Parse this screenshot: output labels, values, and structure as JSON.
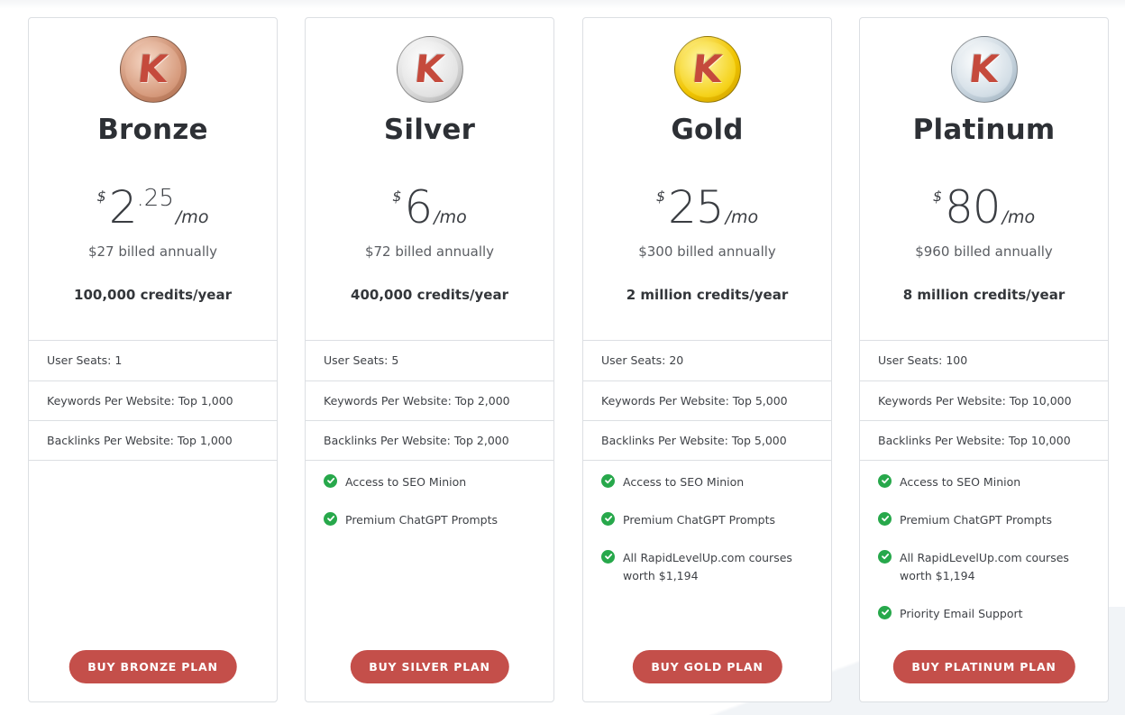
{
  "plans": [
    {
      "name": "Bronze",
      "coin_letter": "K",
      "currency": "$",
      "price_main": "2",
      "price_decimal": ".25",
      "per": "/mo",
      "billed": "$27 billed annually",
      "credits": "100,000 credits/year",
      "user_seats": "User Seats: 1",
      "keywords": "Keywords Per Website: Top 1,000",
      "backlinks": "Backlinks Per Website: Top 1,000",
      "features": [],
      "button": "BUY BRONZE PLAN"
    },
    {
      "name": "Silver",
      "coin_letter": "K",
      "currency": "$",
      "price_main": "6",
      "price_decimal": "",
      "per": "/mo",
      "billed": "$72 billed annually",
      "credits": "400,000 credits/year",
      "user_seats": "User Seats: 5",
      "keywords": "Keywords Per Website: Top 2,000",
      "backlinks": "Backlinks Per Website: Top 2,000",
      "features": [
        "Access to SEO Minion",
        "Premium ChatGPT Prompts"
      ],
      "button": "BUY SILVER PLAN"
    },
    {
      "name": "Gold",
      "coin_letter": "K",
      "currency": "$",
      "price_main": "25",
      "price_decimal": "",
      "per": "/mo",
      "billed": "$300 billed annually",
      "credits": "2 million credits/year",
      "user_seats": "User Seats: 20",
      "keywords": "Keywords Per Website: Top 5,000",
      "backlinks": "Backlinks Per Website: Top 5,000",
      "features": [
        "Access to SEO Minion",
        "Premium ChatGPT Prompts",
        "All RapidLevelUp.com courses worth $1,194"
      ],
      "button": "BUY GOLD PLAN"
    },
    {
      "name": "Platinum",
      "coin_letter": "K",
      "currency": "$",
      "price_main": "80",
      "price_decimal": "",
      "per": "/mo",
      "billed": "$960 billed annually",
      "credits": "8 million credits/year",
      "user_seats": "User Seats: 100",
      "keywords": "Keywords Per Website: Top 10,000",
      "backlinks": "Backlinks Per Website: Top 10,000",
      "features": [
        "Access to SEO Minion",
        "Premium ChatGPT Prompts",
        "All RapidLevelUp.com courses worth $1,194",
        "Priority Email Support"
      ],
      "button": "BUY PLATINUM PLAN"
    }
  ],
  "icons": {
    "feature_check": "check-circle-icon",
    "plan_badge": "coin-logo-icon"
  },
  "colors": {
    "button": "#c44f4a",
    "check": "#27a84b",
    "logo_letter": "#c54a3c"
  }
}
